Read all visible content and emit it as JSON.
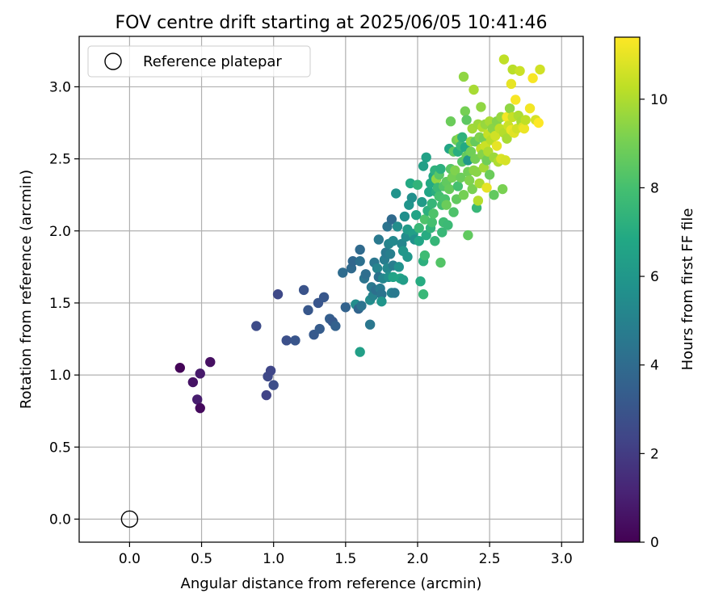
{
  "chart_data": {
    "type": "scatter",
    "title": "FOV centre drift starting at 2025/06/05 10:41:46",
    "xlabel": "Angular distance from reference (arcmin)",
    "ylabel": "Rotation from reference (arcmin)",
    "xlim": [
      -0.35,
      3.15
    ],
    "ylim": [
      -0.16,
      3.35
    ],
    "xticks": [
      "0.0",
      "0.5",
      "1.0",
      "1.5",
      "2.0",
      "2.5",
      "3.0"
    ],
    "yticks": [
      "0.0",
      "0.5",
      "1.0",
      "1.5",
      "2.0",
      "2.5",
      "3.0"
    ],
    "grid": true,
    "legend": {
      "placement": "top-left",
      "entries": [
        "Reference platepar"
      ]
    },
    "reference_point": {
      "x": 0.0,
      "y": 0.0,
      "marker": "open-circle"
    },
    "colorbar": {
      "label": "Hours from first FF file",
      "range": [
        0,
        11.4
      ],
      "ticks": [
        "0",
        "2",
        "4",
        "6",
        "8",
        "10"
      ],
      "colormap": "viridis"
    },
    "series": [
      {
        "points": [
          [
            0.35,
            1.05,
            0.1
          ],
          [
            0.44,
            0.95,
            0.6
          ],
          [
            0.47,
            0.83,
            0.9
          ],
          [
            0.49,
            0.77,
            0.3
          ],
          [
            0.49,
            1.01,
            0.8
          ],
          [
            0.56,
            1.09,
            0.5
          ],
          [
            0.88,
            1.34,
            2.6
          ],
          [
            0.95,
            0.86,
            2.3
          ],
          [
            0.96,
            0.99,
            2.5
          ],
          [
            0.98,
            1.03,
            2.4
          ],
          [
            1.0,
            0.93,
            2.7
          ],
          [
            1.03,
            1.56,
            2.5
          ],
          [
            1.09,
            1.24,
            2.8
          ],
          [
            1.15,
            1.24,
            3.0
          ],
          [
            1.21,
            1.59,
            2.9
          ],
          [
            1.24,
            1.45,
            3.1
          ],
          [
            1.28,
            1.28,
            3.2
          ],
          [
            1.31,
            1.5,
            3.0
          ],
          [
            1.32,
            1.32,
            3.3
          ],
          [
            1.35,
            1.54,
            3.1
          ],
          [
            1.39,
            1.39,
            3.4
          ],
          [
            1.41,
            1.37,
            3.2
          ],
          [
            1.43,
            1.34,
            3.5
          ],
          [
            1.48,
            1.71,
            4.0
          ],
          [
            1.5,
            1.47,
            3.6
          ],
          [
            1.54,
            1.74,
            3.9
          ],
          [
            1.55,
            1.79,
            3.8
          ],
          [
            1.57,
            1.49,
            5.5
          ],
          [
            1.59,
            1.46,
            3.7
          ],
          [
            1.6,
            1.87,
            3.9
          ],
          [
            1.6,
            1.79,
            4.2
          ],
          [
            1.6,
            1.16,
            6.4
          ],
          [
            1.61,
            1.48,
            4.4
          ],
          [
            1.63,
            1.67,
            4.4
          ],
          [
            1.64,
            1.7,
            4.1
          ],
          [
            1.67,
            1.52,
            5.5
          ],
          [
            1.67,
            1.35,
            4.5
          ],
          [
            1.68,
            1.61,
            4.6
          ],
          [
            1.69,
            1.55,
            5.0
          ],
          [
            1.7,
            1.78,
            4.5
          ],
          [
            1.71,
            1.59,
            4.2
          ],
          [
            1.72,
            1.74,
            5.1
          ],
          [
            1.73,
            1.94,
            4.6
          ],
          [
            1.73,
            1.68,
            4.3
          ],
          [
            1.74,
            1.6,
            4.7
          ],
          [
            1.75,
            1.56,
            4.4
          ],
          [
            1.75,
            1.51,
            5.9
          ],
          [
            1.76,
            1.67,
            5.2
          ],
          [
            1.77,
            1.8,
            4.8
          ],
          [
            1.78,
            1.85,
            4.6
          ],
          [
            1.79,
            1.74,
            5.3
          ],
          [
            1.79,
            2.03,
            4.4
          ],
          [
            1.8,
            1.68,
            5.6
          ],
          [
            1.8,
            1.91,
            5.1
          ],
          [
            1.81,
            1.84,
            4.9
          ],
          [
            1.82,
            1.57,
            5.1
          ],
          [
            1.82,
            2.08,
            3.9
          ],
          [
            1.83,
            1.93,
            5.3
          ],
          [
            1.83,
            1.76,
            4.8
          ],
          [
            1.83,
            1.68,
            6.6
          ],
          [
            1.84,
            1.57,
            4.6
          ],
          [
            1.85,
            2.26,
            5.8
          ],
          [
            1.86,
            2.03,
            5.5
          ],
          [
            1.87,
            1.75,
            5.7
          ],
          [
            1.88,
            1.67,
            6.7
          ],
          [
            1.89,
            1.91,
            5.2
          ],
          [
            1.9,
            1.66,
            6.3
          ],
          [
            1.9,
            1.86,
            6.0
          ],
          [
            1.91,
            2.1,
            5.6
          ],
          [
            1.92,
            1.96,
            5.5
          ],
          [
            1.93,
            1.82,
            6.0
          ],
          [
            1.93,
            2.01,
            6.2
          ],
          [
            1.94,
            2.18,
            5.9
          ],
          [
            1.95,
            2.33,
            6.9
          ],
          [
            1.96,
            2.23,
            5.6
          ],
          [
            1.97,
            1.98,
            6.4
          ],
          [
            1.98,
            1.94,
            5.7
          ],
          [
            1.99,
            2.11,
            6.6
          ],
          [
            2.0,
            2.32,
            7.4
          ],
          [
            2.01,
            1.93,
            6.7
          ],
          [
            2.01,
            2.02,
            7.6
          ],
          [
            2.02,
            1.65,
            7.0
          ],
          [
            2.03,
            2.2,
            6.2
          ],
          [
            2.04,
            1.56,
            7.6
          ],
          [
            2.04,
            2.45,
            6.4
          ],
          [
            2.04,
            1.79,
            7.2
          ],
          [
            2.05,
            2.08,
            8.2
          ],
          [
            2.05,
            1.83,
            7.8
          ],
          [
            2.06,
            2.51,
            6.5
          ],
          [
            2.06,
            1.97,
            7.0
          ],
          [
            2.07,
            2.14,
            7.2
          ],
          [
            2.08,
            2.27,
            6.7
          ],
          [
            2.09,
            2.33,
            6.9
          ],
          [
            2.09,
            2.02,
            7.4
          ],
          [
            2.1,
            2.19,
            7.5
          ],
          [
            2.1,
            2.06,
            8.0
          ],
          [
            2.11,
            2.38,
            6.8
          ],
          [
            2.11,
            2.12,
            8.2
          ],
          [
            2.12,
            1.93,
            7.5
          ],
          [
            2.12,
            2.42,
            7.3
          ],
          [
            2.13,
            2.27,
            7.1
          ],
          [
            2.13,
            2.36,
            9.5
          ],
          [
            2.14,
            2.3,
            7.7
          ],
          [
            2.15,
            2.39,
            8.4
          ],
          [
            2.15,
            2.24,
            8.0
          ],
          [
            2.16,
            2.43,
            7.2
          ],
          [
            2.16,
            1.78,
            8.3
          ],
          [
            2.17,
            2.18,
            7.9
          ],
          [
            2.17,
            1.99,
            7.6
          ],
          [
            2.18,
            2.31,
            8.3
          ],
          [
            2.18,
            2.06,
            7.8
          ],
          [
            2.19,
            2.22,
            8.1
          ],
          [
            2.2,
            2.34,
            8.6
          ],
          [
            2.2,
            2.18,
            8.8
          ],
          [
            2.21,
            2.04,
            7.7
          ],
          [
            2.22,
            2.29,
            8.7
          ],
          [
            2.22,
            2.57,
            6.7
          ],
          [
            2.23,
            2.43,
            8.4
          ],
          [
            2.23,
            2.76,
            8.8
          ],
          [
            2.24,
            2.37,
            9.0
          ],
          [
            2.25,
            2.13,
            8.2
          ],
          [
            2.25,
            2.55,
            8.5
          ],
          [
            2.26,
            2.42,
            9.2
          ],
          [
            2.27,
            2.22,
            8.6
          ],
          [
            2.27,
            2.63,
            8.9
          ],
          [
            2.28,
            2.31,
            8.0
          ],
          [
            2.28,
            2.55,
            7.1
          ],
          [
            2.29,
            2.64,
            9.3
          ],
          [
            2.3,
            2.37,
            8.8
          ],
          [
            2.3,
            2.59,
            7.7
          ],
          [
            2.31,
            2.48,
            8.4
          ],
          [
            2.31,
            2.65,
            7.3
          ],
          [
            2.32,
            2.25,
            9.0
          ],
          [
            2.32,
            3.07,
            9.5
          ],
          [
            2.33,
            2.58,
            6.9
          ],
          [
            2.33,
            2.83,
            9.0
          ],
          [
            2.34,
            2.52,
            8.7
          ],
          [
            2.34,
            2.77,
            8.5
          ],
          [
            2.35,
            1.97,
            8.6
          ],
          [
            2.35,
            2.41,
            8.9
          ],
          [
            2.35,
            2.49,
            6.1
          ],
          [
            2.36,
            2.35,
            9.2
          ],
          [
            2.37,
            2.55,
            8.9
          ],
          [
            2.37,
            2.62,
            9.6
          ],
          [
            2.38,
            2.29,
            9.1
          ],
          [
            2.38,
            2.71,
            9.8
          ],
          [
            2.39,
            2.42,
            9.4
          ],
          [
            2.39,
            2.98,
            9.9
          ],
          [
            2.4,
            2.62,
            8.7
          ],
          [
            2.4,
            2.5,
            9.0
          ],
          [
            2.41,
            2.16,
            7.6
          ],
          [
            2.41,
            2.41,
            9.4
          ],
          [
            2.42,
            2.21,
            10.1
          ],
          [
            2.42,
            2.74,
            9.7
          ],
          [
            2.43,
            2.33,
            9.9
          ],
          [
            2.43,
            2.65,
            9.2
          ],
          [
            2.44,
            2.86,
            9.5
          ],
          [
            2.44,
            2.57,
            10.3
          ],
          [
            2.45,
            2.72,
            10.1
          ],
          [
            2.45,
            2.53,
            9.3
          ],
          [
            2.46,
            2.44,
            9.8
          ],
          [
            2.46,
            2.64,
            9.0
          ],
          [
            2.47,
            2.59,
            10.5
          ],
          [
            2.47,
            2.74,
            9.6
          ],
          [
            2.48,
            2.3,
            11.0
          ],
          [
            2.48,
            2.49,
            8.9
          ],
          [
            2.49,
            2.67,
            10.4
          ],
          [
            2.49,
            2.55,
            10.0
          ],
          [
            2.5,
            2.76,
            9.9
          ],
          [
            2.5,
            2.39,
            8.8
          ],
          [
            2.51,
            2.63,
            10.2
          ],
          [
            2.52,
            2.71,
            9.4
          ],
          [
            2.53,
            2.25,
            8.6
          ],
          [
            2.53,
            2.51,
            9.7
          ],
          [
            2.54,
            2.66,
            10.6
          ],
          [
            2.55,
            2.59,
            11.0
          ],
          [
            2.55,
            2.76,
            9.3
          ],
          [
            2.56,
            2.48,
            10.0
          ],
          [
            2.57,
            2.71,
            10.3
          ],
          [
            2.58,
            2.79,
            9.6
          ],
          [
            2.58,
            2.5,
            10.8
          ],
          [
            2.59,
            2.29,
            9.1
          ],
          [
            2.6,
            2.68,
            10.1
          ],
          [
            2.6,
            3.19,
            10.3
          ],
          [
            2.61,
            2.49,
            10.7
          ],
          [
            2.62,
            2.79,
            11.2
          ],
          [
            2.62,
            2.64,
            9.9
          ],
          [
            2.63,
            2.73,
            10.5
          ],
          [
            2.64,
            2.85,
            9.5
          ],
          [
            2.65,
            2.7,
            11.1
          ],
          [
            2.65,
            3.02,
            11.0
          ],
          [
            2.66,
            2.79,
            10.4
          ],
          [
            2.66,
            3.12,
            10.2
          ],
          [
            2.67,
            2.68,
            10.9
          ],
          [
            2.68,
            2.91,
            11.3
          ],
          [
            2.69,
            2.71,
            10.6
          ],
          [
            2.7,
            2.8,
            10.0
          ],
          [
            2.71,
            3.11,
            10.5
          ],
          [
            2.72,
            2.76,
            9.9
          ],
          [
            2.73,
            2.72,
            10.8
          ],
          [
            2.74,
            2.71,
            11.1
          ],
          [
            2.75,
            2.77,
            10.3
          ],
          [
            2.78,
            2.85,
            11.2
          ],
          [
            2.8,
            3.06,
            11.3
          ],
          [
            2.82,
            2.77,
            10.7
          ],
          [
            2.84,
            2.75,
            11.4
          ],
          [
            2.85,
            3.12,
            10.6
          ]
        ]
      }
    ]
  }
}
